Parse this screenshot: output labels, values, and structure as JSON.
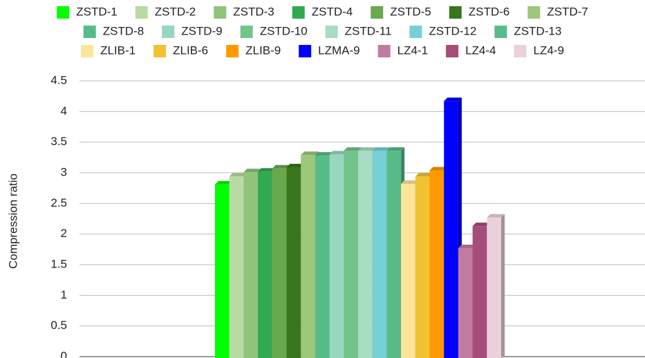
{
  "chart_data": {
    "type": "bar3d",
    "y_label": "Compression ratio",
    "categories": [
      null
    ],
    "series": [
      {
        "name": "ZSTD-1",
        "color": "#00ff00",
        "values": [
          2.81
        ]
      },
      {
        "name": "ZSTD-2",
        "color": "#b7dba3",
        "values": [
          2.94
        ]
      },
      {
        "name": "ZSTD-3",
        "color": "#8fc47a",
        "values": [
          3.01
        ]
      },
      {
        "name": "ZSTD-4",
        "color": "#33a852",
        "values": [
          3.02
        ]
      },
      {
        "name": "ZSTD-5",
        "color": "#6aa84f",
        "values": [
          3.07
        ]
      },
      {
        "name": "ZSTD-6",
        "color": "#38761d",
        "values": [
          3.09
        ]
      },
      {
        "name": "ZSTD-7",
        "color": "#9dc77a",
        "values": [
          3.29
        ]
      },
      {
        "name": "ZSTD-8",
        "color": "#57bb8a",
        "values": [
          3.28
        ]
      },
      {
        "name": "ZSTD-9",
        "color": "#98d7bf",
        "values": [
          3.3
        ]
      },
      {
        "name": "ZSTD-10",
        "color": "#72c48a",
        "values": [
          3.36
        ]
      },
      {
        "name": "ZSTD-11",
        "color": "#a8dcc4",
        "values": [
          3.36
        ]
      },
      {
        "name": "ZSTD-12",
        "color": "#76d0d6",
        "values": [
          3.36
        ]
      },
      {
        "name": "ZSTD-13",
        "color": "#57bb8a",
        "values": [
          3.36
        ]
      },
      {
        "name": "ZLIB-1",
        "color": "#ffe599",
        "values": [
          2.82
        ]
      },
      {
        "name": "ZLIB-6",
        "color": "#f1c232",
        "values": [
          2.94
        ]
      },
      {
        "name": "ZLIB-9",
        "color": "#ff9900",
        "values": [
          3.04
        ]
      },
      {
        "name": "LZMA-9",
        "color": "#0000ff",
        "values": [
          4.17
        ]
      },
      {
        "name": "LZ4-1",
        "color": "#c27ba0",
        "values": [
          1.77
        ]
      },
      {
        "name": "LZ4-4",
        "color": "#a64d79",
        "values": [
          2.13
        ]
      },
      {
        "name": "LZ4-9",
        "color": "#ead1dc",
        "values": [
          2.27
        ]
      }
    ],
    "ylim": [
      0,
      4.5
    ],
    "yticks": [
      0,
      0.5,
      1,
      1.5,
      2,
      2.5,
      3,
      3.5,
      4,
      4.5
    ],
    "grid": true,
    "legend": "top"
  }
}
